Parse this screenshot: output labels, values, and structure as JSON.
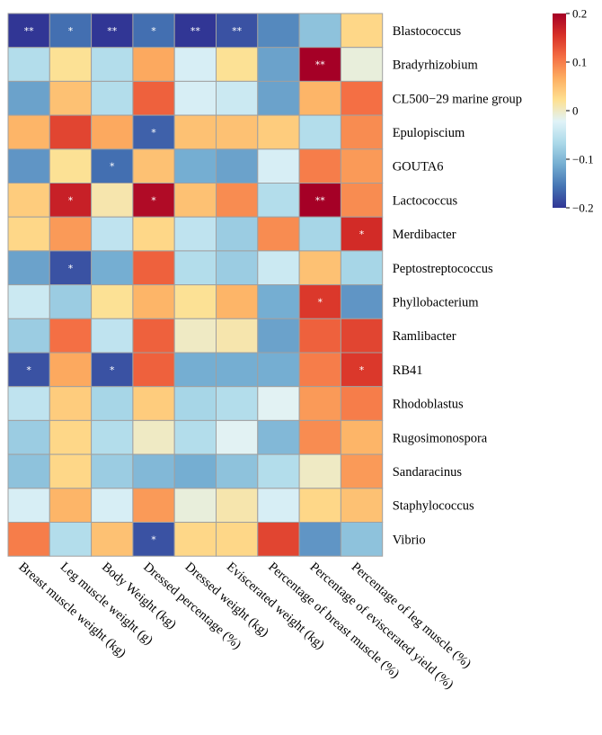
{
  "chart_data": {
    "type": "heatmap",
    "title": "",
    "xlabel": "",
    "ylabel": "",
    "rows": [
      "Blastococcus",
      "Bradyrhizobium",
      "CL500−29 marine group",
      "Epulopiscium",
      "GOUTA6",
      "Lactococcus",
      "Merdibacter",
      "Peptostreptococcus",
      "Phyllobacterium",
      "Ramlibacter",
      "RB41",
      "Rhodoblastus",
      "Rugosimonospora",
      "Sandaracinus",
      "Staphylococcus",
      "Vibrio"
    ],
    "columns": [
      "Breast muscle weight (kg)",
      "Leg muscle weight (g)",
      "Body Weight (kg)",
      "Dressed percentage (%)",
      "Dressed weight (kg)",
      "Eviscerated weight (kg)",
      "Percentage of breast muscle (%)",
      "Percentage of eviscerated yield (%)",
      "Percentage of leg muscle (%)"
    ],
    "values": [
      [
        -0.2,
        -0.16,
        -0.2,
        -0.16,
        -0.2,
        -0.18,
        -0.14,
        -0.09,
        0.03
      ],
      [
        -0.06,
        0.02,
        -0.06,
        0.07,
        -0.03,
        0.02,
        -0.12,
        0.2,
        -0.01
      ],
      [
        -0.12,
        0.05,
        -0.06,
        0.12,
        -0.03,
        -0.04,
        -0.12,
        0.06,
        0.11
      ],
      [
        0.06,
        0.14,
        0.07,
        -0.17,
        0.05,
        0.05,
        0.04,
        -0.06,
        0.09
      ],
      [
        -0.13,
        0.02,
        -0.16,
        0.05,
        -0.11,
        -0.12,
        -0.03,
        0.1,
        0.08
      ],
      [
        0.04,
        0.17,
        0.01,
        0.19,
        0.05,
        0.09,
        -0.06,
        0.2,
        0.09
      ],
      [
        0.03,
        0.08,
        -0.05,
        0.03,
        -0.05,
        -0.08,
        0.09,
        -0.07,
        0.16
      ],
      [
        -0.12,
        -0.18,
        -0.11,
        0.12,
        -0.06,
        -0.08,
        -0.04,
        0.05,
        -0.07
      ],
      [
        -0.04,
        -0.08,
        0.02,
        0.06,
        0.02,
        0.06,
        -0.11,
        0.15,
        -0.13
      ],
      [
        -0.08,
        0.11,
        -0.05,
        0.12,
        0.0,
        0.01,
        -0.12,
        0.12,
        0.14
      ],
      [
        -0.18,
        0.07,
        -0.18,
        0.12,
        -0.11,
        -0.11,
        -0.11,
        0.1,
        0.15
      ],
      [
        -0.05,
        0.04,
        -0.07,
        0.04,
        -0.07,
        -0.06,
        -0.02,
        0.08,
        0.1
      ],
      [
        -0.08,
        0.03,
        -0.06,
        0.0,
        -0.06,
        -0.02,
        -0.1,
        0.09,
        0.06
      ],
      [
        -0.09,
        0.03,
        -0.08,
        -0.1,
        -0.11,
        -0.09,
        -0.06,
        0.0,
        0.08
      ],
      [
        -0.03,
        0.06,
        -0.03,
        0.08,
        -0.01,
        0.01,
        -0.03,
        0.03,
        0.05
      ],
      [
        0.1,
        -0.06,
        0.05,
        -0.18,
        0.03,
        0.03,
        0.14,
        -0.13,
        -0.09
      ]
    ],
    "significance": [
      [
        "**",
        "*",
        "**",
        "*",
        "**",
        "**",
        "",
        "",
        ""
      ],
      [
        "",
        "",
        "",
        "",
        "",
        "",
        "",
        "**",
        ""
      ],
      [
        "",
        "",
        "",
        "",
        "",
        "",
        "",
        "",
        ""
      ],
      [
        "",
        "",
        "",
        "*",
        "",
        "",
        "",
        "",
        ""
      ],
      [
        "",
        "",
        "*",
        "",
        "",
        "",
        "",
        "",
        ""
      ],
      [
        "",
        "*",
        "",
        "*",
        "",
        "",
        "",
        "**",
        ""
      ],
      [
        "",
        "",
        "",
        "",
        "",
        "",
        "",
        "",
        "*"
      ],
      [
        "",
        "*",
        "",
        "",
        "",
        "",
        "",
        "",
        ""
      ],
      [
        "",
        "",
        "",
        "",
        "",
        "",
        "",
        "*",
        ""
      ],
      [
        "",
        "",
        "",
        "",
        "",
        "",
        "",
        "",
        ""
      ],
      [
        "*",
        "",
        "*",
        "",
        "",
        "",
        "",
        "",
        "*"
      ],
      [
        "",
        "",
        "",
        "",
        "",
        "",
        "",
        "",
        ""
      ],
      [
        "",
        "",
        "",
        "",
        "",
        "",
        "",
        "",
        ""
      ],
      [
        "",
        "",
        "",
        "",
        "",
        "",
        "",
        "",
        ""
      ],
      [
        "",
        "",
        "",
        "",
        "",
        "",
        "",
        "",
        ""
      ],
      [
        "",
        "",
        "",
        "*",
        "",
        "",
        "",
        "",
        ""
      ]
    ],
    "colorbar": {
      "range": [
        -0.2,
        0.2
      ],
      "ticks": [
        0.2,
        0.1,
        0,
        -0.1,
        -0.2
      ],
      "tick_labels": [
        "0.2",
        "0.1",
        "0",
        "−0.1",
        "−0.2"
      ],
      "stops": [
        "#313695",
        "#4575b4",
        "#74add1",
        "#abd9e9",
        "#e0f3f8",
        "#fee090",
        "#fdae61",
        "#f46d43",
        "#d73027",
        "#a50026"
      ]
    },
    "grid_color": "#a0a0a0",
    "mark_color": "#ffffff"
  }
}
